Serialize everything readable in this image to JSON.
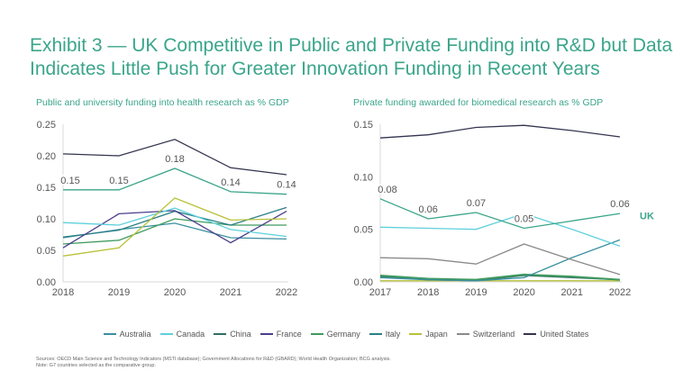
{
  "title": "Exhibit 3 — UK Competitive in Public and Private Funding into R&D but Data Indicates Little Push for Greater Innovation Funding in Recent Years",
  "footer": {
    "sources": "Sources: OECD Main Science and Technology Indicators (MSTI database); Government Allocations for R&D (GBARD); World Health Organization; BCG analysis.",
    "note": "Note: G7 countries selected as the comparative group."
  },
  "colors": {
    "Australia": "#3a8fa0",
    "Canada": "#5fd0dc",
    "China": "#2f6e66",
    "France": "#4a3f8c",
    "Germany": "#3f9a5e",
    "Italy": "#2a7f86",
    "Japan": "#b8c23a",
    "Switzerland": "#8a8a8a",
    "United States": "#33344f",
    "UK": "#3aa58a"
  },
  "legend": [
    "Australia",
    "Canada",
    "China",
    "France",
    "Germany",
    "Italy",
    "Japan",
    "Switzerland",
    "United States"
  ],
  "chart_data": [
    {
      "type": "line",
      "title": "Public and university funding into health research as % GDP",
      "x": [
        "2018",
        "2019",
        "2020",
        "2021",
        "2022"
      ],
      "ylim": [
        0,
        0.25
      ],
      "yticks": [
        "0.00",
        "0.05",
        "0.10",
        "0.15",
        "0.20",
        "0.25"
      ],
      "grid": false,
      "series": [
        {
          "name": "United States",
          "values": [
            0.203,
            0.2,
            0.226,
            0.181,
            0.17
          ]
        },
        {
          "name": "UK",
          "values": [
            0.146,
            0.146,
            0.18,
            0.143,
            0.139
          ],
          "labels": [
            "0.15",
            "0.15",
            "0.18",
            "0.14",
            "0.14"
          ]
        },
        {
          "name": "Japan",
          "values": [
            0.041,
            0.054,
            0.133,
            0.098,
            0.1
          ]
        },
        {
          "name": "Canada",
          "values": [
            0.094,
            0.09,
            0.117,
            0.083,
            0.072
          ]
        },
        {
          "name": "France",
          "values": [
            0.054,
            0.108,
            0.113,
            0.062,
            0.112
          ]
        },
        {
          "name": "Italy",
          "values": [
            0.071,
            0.082,
            0.112,
            0.09,
            0.118
          ]
        },
        {
          "name": "Germany",
          "values": [
            0.06,
            0.066,
            0.1,
            0.09,
            0.09
          ]
        },
        {
          "name": "Australia",
          "values": [
            0.07,
            0.083,
            0.093,
            0.07,
            0.068
          ]
        }
      ]
    },
    {
      "type": "line",
      "title": "Private funding awarded for biomedical research as % GDP",
      "x": [
        "2017",
        "2018",
        "2019",
        "2020",
        "2021",
        "2022"
      ],
      "ylim": [
        0,
        0.15
      ],
      "yticks": [
        "0.00",
        "0.05",
        "0.10",
        "0.15"
      ],
      "grid": false,
      "series_end_label": "UK",
      "series": [
        {
          "name": "United States",
          "values": [
            0.137,
            0.14,
            0.147,
            0.149,
            0.144,
            0.138
          ]
        },
        {
          "name": "UK",
          "values": [
            0.079,
            0.06,
            0.066,
            0.051,
            0.058,
            0.065
          ],
          "labels": [
            "0.08",
            "0.06",
            "0.07",
            "0.05",
            "",
            "0.06"
          ]
        },
        {
          "name": "Canada",
          "values": [
            0.052,
            0.051,
            0.05,
            0.065,
            0.05,
            0.034
          ]
        },
        {
          "name": "Switzerland",
          "values": [
            0.023,
            0.022,
            0.017,
            0.036,
            0.021,
            0.007
          ]
        },
        {
          "name": "Australia",
          "values": [
            0.004,
            0.002,
            0.001,
            0.004,
            0.023,
            0.04
          ]
        },
        {
          "name": "Germany",
          "values": [
            0.006,
            0.003,
            0.002,
            0.007,
            0.005,
            0.002
          ]
        },
        {
          "name": "China",
          "values": [
            0.005,
            0.002,
            0.001,
            0.006,
            0.004,
            0.002
          ]
        },
        {
          "name": "Japan",
          "values": [
            0.001,
            0.001,
            0.001,
            0.001,
            0.001,
            0.001
          ]
        }
      ]
    }
  ]
}
